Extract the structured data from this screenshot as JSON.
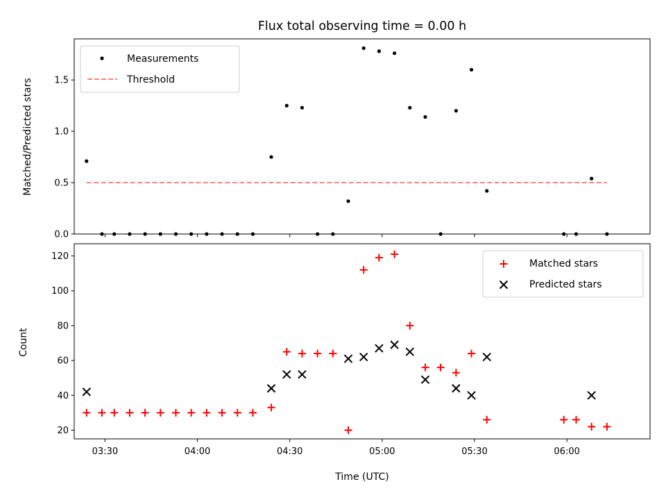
{
  "colors": {
    "measurements": "#000000",
    "threshold": "#ff7f7f",
    "matched": "#ff0000",
    "predicted": "#000000"
  },
  "chart_data": [
    {
      "type": "scatter",
      "title": "Flux total observing time = 0.00 h",
      "xlabel": "",
      "ylabel": "Matched/Predicted stars",
      "xlim": [
        "03:20",
        "06:27"
      ],
      "ylim": [
        0,
        1.9
      ],
      "yticks": [
        0.0,
        0.5,
        1.0,
        1.5
      ],
      "ytick_labels": [
        "0.0",
        "0.5",
        "1.0",
        "1.5"
      ],
      "grid": false,
      "legend": {
        "placement": "upper left"
      },
      "series": [
        {
          "name": "Measurements",
          "kind": "scatter",
          "marker": "dot",
          "x": [
            "03:24",
            "03:29",
            "03:33",
            "03:38",
            "03:43",
            "03:48",
            "03:53",
            "03:58",
            "04:03",
            "04:08",
            "04:13",
            "04:18",
            "04:24",
            "04:29",
            "04:34",
            "04:39",
            "04:44",
            "04:49",
            "04:54",
            "04:59",
            "05:04",
            "05:09",
            "05:14",
            "05:19",
            "05:24",
            "05:29",
            "05:34",
            "05:59",
            "06:03",
            "06:08",
            "06:13"
          ],
          "y": [
            0.71,
            0.0,
            0.0,
            0.0,
            0.0,
            0.0,
            0.0,
            0.0,
            0.0,
            0.0,
            0.0,
            0.0,
            0.75,
            1.25,
            1.23,
            0.0,
            0.0,
            0.32,
            1.81,
            1.78,
            1.76,
            1.23,
            1.14,
            0.0,
            1.2,
            1.6,
            0.42,
            0.0,
            0.0,
            0.54,
            0.0
          ]
        },
        {
          "name": "Threshold",
          "kind": "line",
          "style": "dashed",
          "x": [
            "03:24",
            "06:13"
          ],
          "y": [
            0.5,
            0.5
          ]
        }
      ]
    },
    {
      "type": "scatter",
      "title": "",
      "xlabel": "Time (UTC)",
      "ylabel": "Count",
      "xlim": [
        "03:20",
        "06:27"
      ],
      "ylim": [
        15,
        127
      ],
      "yticks": [
        20,
        40,
        60,
        80,
        100,
        120
      ],
      "ytick_labels": [
        "20",
        "40",
        "60",
        "80",
        "100",
        "120"
      ],
      "xticks": [
        "03:30",
        "04:00",
        "04:30",
        "05:00",
        "05:30",
        "06:00"
      ],
      "xtick_labels": [
        "03:30",
        "04:00",
        "04:30",
        "05:00",
        "05:30",
        "06:00"
      ],
      "grid": false,
      "legend": {
        "placement": "upper right"
      },
      "series": [
        {
          "name": "Matched stars",
          "kind": "scatter",
          "marker": "plus",
          "x": [
            "03:24",
            "03:29",
            "03:33",
            "03:38",
            "03:43",
            "03:48",
            "03:53",
            "03:58",
            "04:03",
            "04:08",
            "04:13",
            "04:18",
            "04:24",
            "04:29",
            "04:34",
            "04:39",
            "04:44",
            "04:49",
            "04:54",
            "04:59",
            "05:04",
            "05:09",
            "05:14",
            "05:19",
            "05:24",
            "05:29",
            "05:34",
            "05:59",
            "06:03",
            "06:08",
            "06:13"
          ],
          "y": [
            30,
            30,
            30,
            30,
            30,
            30,
            30,
            30,
            30,
            30,
            30,
            30,
            33,
            65,
            64,
            64,
            64,
            20,
            112,
            119,
            121,
            80,
            56,
            56,
            53,
            64,
            26,
            26,
            26,
            22,
            22
          ]
        },
        {
          "name": "Predicted stars",
          "kind": "scatter",
          "marker": "x",
          "x": [
            "03:24",
            "04:24",
            "04:29",
            "04:34",
            "04:49",
            "04:54",
            "04:59",
            "05:04",
            "05:09",
            "05:14",
            "05:24",
            "05:29",
            "05:34",
            "06:08"
          ],
          "y": [
            42,
            44,
            52,
            52,
            61,
            62,
            67,
            69,
            65,
            49,
            44,
            40,
            62,
            40
          ]
        }
      ]
    }
  ]
}
